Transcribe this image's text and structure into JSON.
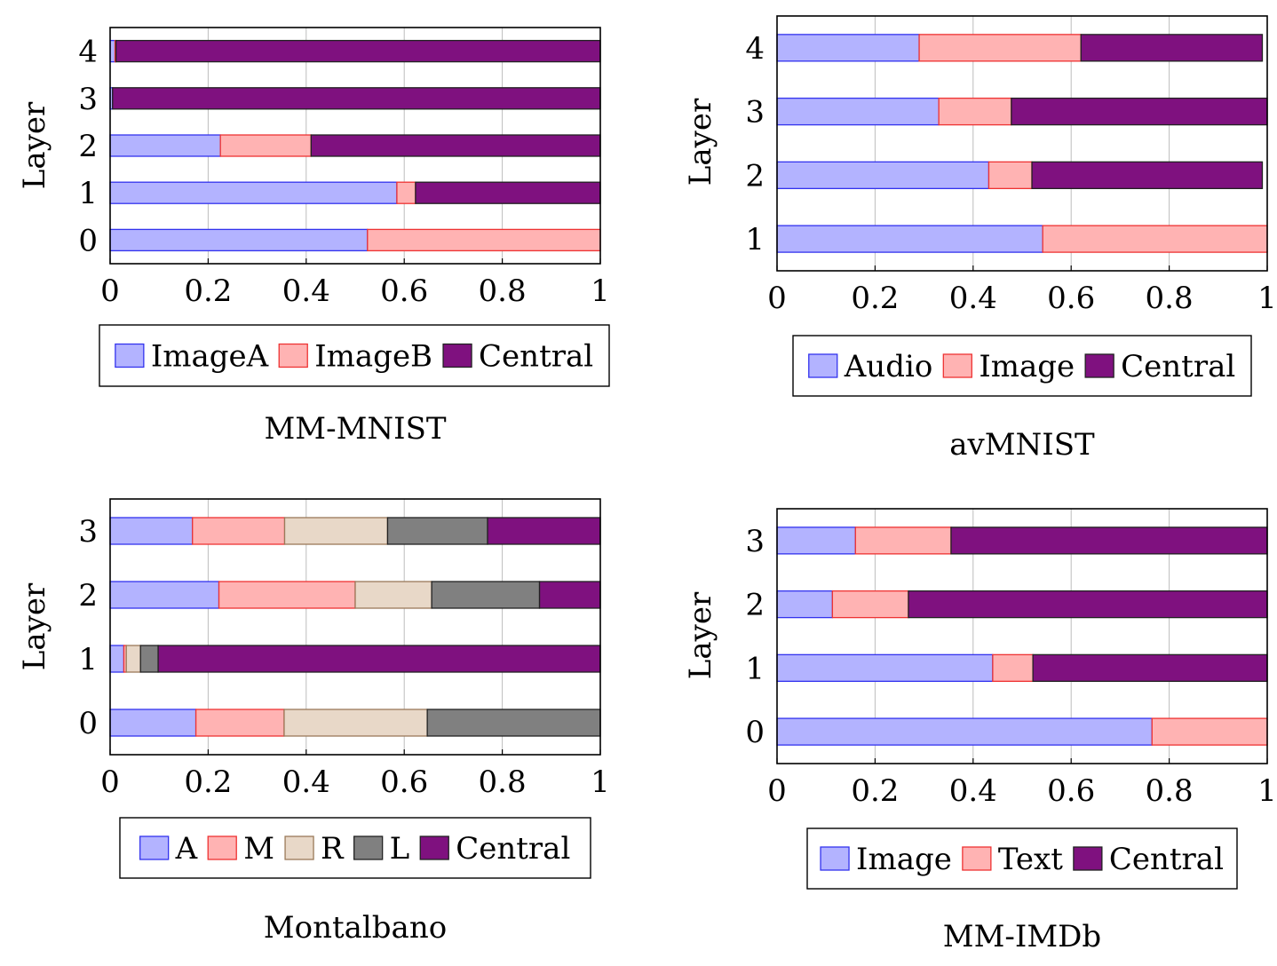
{
  "chart_data": [
    {
      "type": "bar",
      "orientation": "horizontal",
      "stacked": true,
      "title": "MM-MNIST",
      "ylabel": "Layer",
      "xlim": [
        0,
        1
      ],
      "xticks": [
        "0",
        "0.2",
        "0.4",
        "0.6",
        "0.8",
        "1"
      ],
      "categories": [
        "0",
        "1",
        "2",
        "3",
        "4"
      ],
      "grid": "x",
      "legend": "below",
      "series": [
        {
          "name": "ImageA",
          "values": [
            0.525,
            0.585,
            0.225,
            0.005,
            0.01
          ]
        },
        {
          "name": "ImageB",
          "values": [
            0.475,
            0.038,
            0.185,
            0.0,
            0.002
          ]
        },
        {
          "name": "Central",
          "values": [
            0.0,
            0.377,
            0.59,
            0.995,
            0.988
          ]
        }
      ]
    },
    {
      "type": "bar",
      "orientation": "horizontal",
      "stacked": true,
      "title": "avMNIST",
      "ylabel": "Layer",
      "xlim": [
        0,
        1
      ],
      "xticks": [
        "0",
        "0.2",
        "0.4",
        "0.6",
        "0.8",
        "1"
      ],
      "categories": [
        "1",
        "2",
        "3",
        "4"
      ],
      "grid": "x",
      "legend": "below",
      "series": [
        {
          "name": "Audio",
          "values": [
            0.542,
            0.432,
            0.33,
            0.29
          ]
        },
        {
          "name": "Image",
          "values": [
            0.458,
            0.088,
            0.148,
            0.33
          ]
        },
        {
          "name": "Central",
          "values": [
            0.0,
            0.47,
            0.522,
            0.37
          ]
        }
      ]
    },
    {
      "type": "bar",
      "orientation": "horizontal",
      "stacked": true,
      "title": "Montalbano",
      "ylabel": "Layer",
      "xlim": [
        0,
        1
      ],
      "xticks": [
        "0",
        "0.2",
        "0.4",
        "0.6",
        "0.8",
        "1"
      ],
      "categories": [
        "0",
        "1",
        "2",
        "3"
      ],
      "grid": "x",
      "legend": "below",
      "series": [
        {
          "name": "A",
          "values": [
            0.175,
            0.028,
            0.222,
            0.168
          ]
        },
        {
          "name": "M",
          "values": [
            0.18,
            0.005,
            0.278,
            0.188
          ]
        },
        {
          "name": "R",
          "values": [
            0.292,
            0.029,
            0.156,
            0.21
          ]
        },
        {
          "name": "L",
          "values": [
            0.353,
            0.036,
            0.22,
            0.204
          ]
        },
        {
          "name": "Central",
          "values": [
            0.0,
            0.902,
            0.124,
            0.23
          ]
        }
      ]
    },
    {
      "type": "bar",
      "orientation": "horizontal",
      "stacked": true,
      "title": "MM-IMDb",
      "ylabel": "Layer",
      "xlim": [
        0,
        1
      ],
      "xticks": [
        "0",
        "0.2",
        "0.4",
        "0.6",
        "0.8",
        "1"
      ],
      "categories": [
        "0",
        "1",
        "2",
        "3"
      ],
      "grid": "x",
      "legend": "below",
      "series": [
        {
          "name": "Image",
          "values": [
            0.765,
            0.44,
            0.113,
            0.16
          ]
        },
        {
          "name": "Text",
          "values": [
            0.235,
            0.082,
            0.155,
            0.195
          ]
        },
        {
          "name": "Central",
          "values": [
            0.0,
            0.478,
            0.732,
            0.645
          ]
        }
      ]
    }
  ],
  "colors": {
    "A": {
      "fill": "#b3b3ff",
      "stroke": "#3333ee"
    },
    "B": {
      "fill": "#ffb3b3",
      "stroke": "#ee3333"
    },
    "R": {
      "fill": "#e8d8c8",
      "stroke": "#9a7a5a"
    },
    "L": {
      "fill": "#808080",
      "stroke": "#222222"
    },
    "Central": {
      "fill": "#7f117f",
      "stroke": "#222222"
    }
  }
}
